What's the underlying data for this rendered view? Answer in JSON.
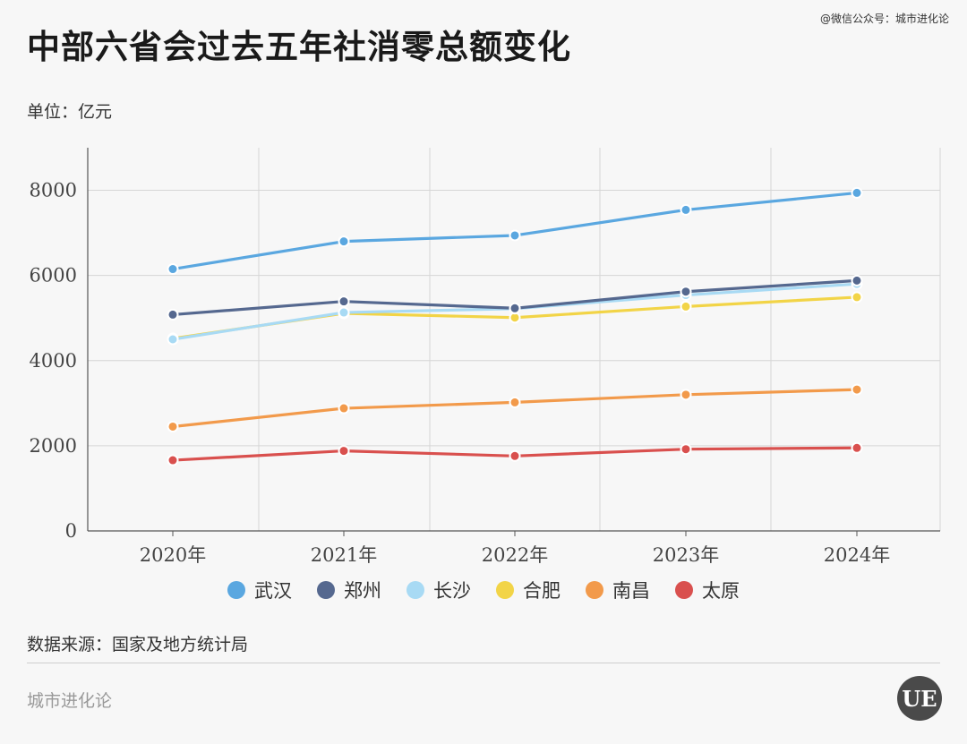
{
  "header": {
    "title": "中部六省会过去五年社消零总额变化",
    "wechat": "@微信公众号：城市进化论",
    "unit": "单位：亿元"
  },
  "footer": {
    "source": "数据来源：国家及地方统计局",
    "brand": "城市进化论",
    "logo_text": "UE"
  },
  "chart_data": {
    "type": "line",
    "categories": [
      "2020年",
      "2021年",
      "2022年",
      "2023年",
      "2024年"
    ],
    "ylim": [
      0,
      9000
    ],
    "yticks": [
      0,
      2000,
      4000,
      6000,
      8000
    ],
    "grid": true,
    "legend_position": "bottom",
    "series": [
      {
        "name": "武汉",
        "color": "#5aa7e0",
        "values": [
          6150,
          6800,
          6940,
          7540,
          7940
        ]
      },
      {
        "name": "郑州",
        "color": "#55688f",
        "values": [
          5080,
          5390,
          5230,
          5620,
          5880
        ]
      },
      {
        "name": "长沙",
        "color": "#a8daf4",
        "values": [
          4500,
          5130,
          5220,
          5540,
          5800
        ]
      },
      {
        "name": "合肥",
        "color": "#f2d447",
        "values": [
          4520,
          5110,
          5010,
          5270,
          5490
        ]
      },
      {
        "name": "南昌",
        "color": "#f29a4b",
        "values": [
          2450,
          2880,
          3020,
          3200,
          3320
        ]
      },
      {
        "name": "太原",
        "color": "#d9504e",
        "values": [
          1660,
          1880,
          1760,
          1920,
          1950
        ]
      }
    ]
  }
}
